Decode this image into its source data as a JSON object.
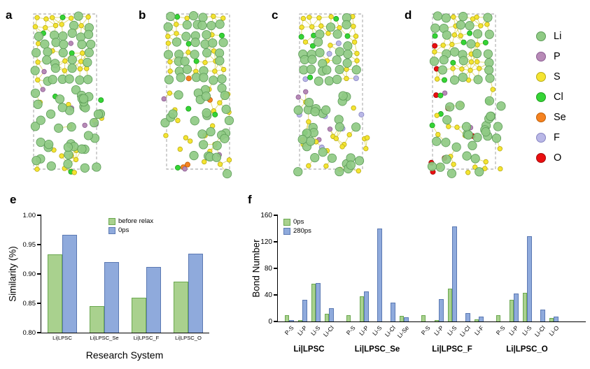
{
  "panels": {
    "a": "a",
    "b": "b",
    "c": "c",
    "d": "d",
    "e": "e",
    "f": "f"
  },
  "legend": {
    "items": [
      {
        "label": "Li",
        "color": "#8fca84",
        "edge": "#5c9b57"
      },
      {
        "label": "P",
        "color": "#b78ab6",
        "edge": "#8c5e94"
      },
      {
        "label": "S",
        "color": "#f4e431",
        "edge": "#b8ab17"
      },
      {
        "label": "Cl",
        "color": "#35d435",
        "edge": "#1f9e1f"
      },
      {
        "label": "Se",
        "color": "#f58220",
        "edge": "#c05f08"
      },
      {
        "label": "F",
        "color": "#b9b7e6",
        "edge": "#8785c2"
      },
      {
        "label": "O",
        "color": "#ea0e10",
        "edge": "#a50a0a"
      }
    ]
  },
  "structures": [
    {
      "panel": "a",
      "dopant": ""
    },
    {
      "panel": "b",
      "dopant": "Se"
    },
    {
      "panel": "c",
      "dopant": "F"
    },
    {
      "panel": "d",
      "dopant": "O"
    }
  ],
  "chart_data": [
    {
      "id": "similarity",
      "type": "bar",
      "title": "",
      "xlabel": "Research System",
      "ylabel": "Similarity (%)",
      "ylim": [
        0.8,
        1.0
      ],
      "ytick_labels": [
        "0.80",
        "0.85",
        "0.90",
        "0.95",
        "1.00"
      ],
      "categories": [
        "Li|LPSC",
        "Li|LPSC_Se",
        "Li|LPSC_F",
        "Li|LPSC_O"
      ],
      "legend_position": "top-center",
      "series": [
        {
          "name": "before relax",
          "color": "#a9d18e",
          "border": "#6aa84f",
          "values": [
            0.933,
            0.845,
            0.86,
            0.887
          ]
        },
        {
          "name": "0ps",
          "color": "#8faadc",
          "border": "#5b79b3",
          "values": [
            0.967,
            0.92,
            0.912,
            0.935
          ]
        }
      ]
    },
    {
      "id": "bond-number",
      "type": "bar",
      "title": "",
      "xlabel": "",
      "ylabel": "Bond Number",
      "ylim": [
        0,
        160
      ],
      "ytick_labels": [
        "0",
        "40",
        "80",
        "120",
        "160"
      ],
      "legend_position": "top-left",
      "series": [
        {
          "name": "0ps",
          "color": "#a9d18e",
          "border": "#6aa84f"
        },
        {
          "name": "280ps",
          "color": "#8faadc",
          "border": "#5b79b3"
        }
      ],
      "groups": [
        {
          "label": "Li|LPSC",
          "categories": [
            "P-S",
            "Li-P",
            "Li-S",
            "Li-Cl"
          ],
          "values": [
            [
              10,
              2,
              57,
              12
            ],
            [
              2,
              33,
              58,
              20
            ]
          ]
        },
        {
          "label": "Li|LPSC_Se",
          "categories": [
            "P-S",
            "Li-P",
            "Li-S",
            "Li-Cl",
            "Li-Se"
          ],
          "values": [
            [
              10,
              38,
              0,
              0,
              8
            ],
            [
              0,
              45,
              140,
              28,
              6
            ]
          ]
        },
        {
          "label": "Li|LPSC_F",
          "categories": [
            "P-S",
            "Li-P",
            "Li-S",
            "Li-Cl",
            "Li-F"
          ],
          "values": [
            [
              10,
              2,
              50,
              0,
              3
            ],
            [
              0,
              34,
              143,
              13,
              7
            ]
          ]
        },
        {
          "label": "Li|LPSC_O",
          "categories": [
            "P-S",
            "Li-P",
            "Li-S",
            "Li-Cl",
            "Li-O"
          ],
          "values": [
            [
              10,
              33,
              43,
              0,
              5
            ],
            [
              0,
              42,
              128,
              18,
              7
            ]
          ]
        }
      ]
    }
  ]
}
